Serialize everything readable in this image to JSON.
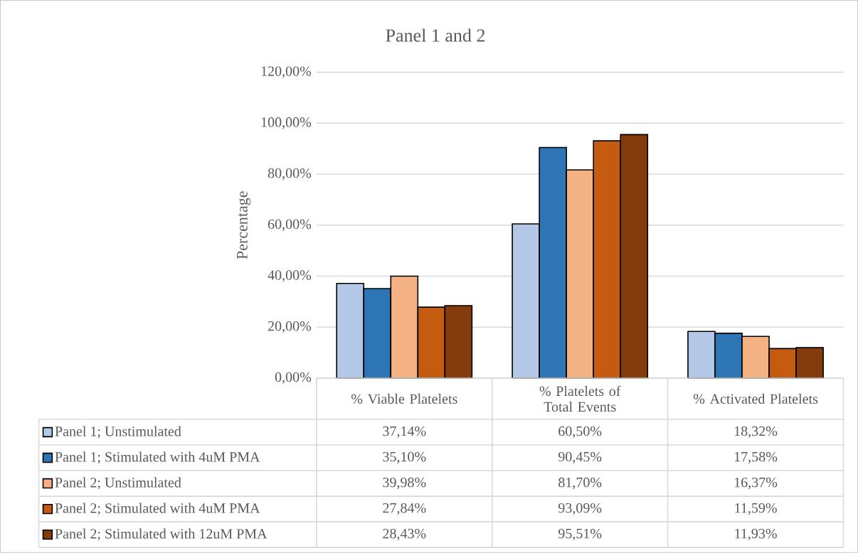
{
  "chart_data": {
    "type": "bar",
    "title": "Panel 1 and 2",
    "ylabel": "Percentage",
    "categories": [
      "% Viable Platelets",
      "% Platelets of Total Events",
      "% Activated Platelets"
    ],
    "series": [
      {
        "name": "Panel 1; Unstimulated",
        "color": "#b4c7e7",
        "values": [
          37.14,
          60.5,
          18.32
        ],
        "value_labels": [
          "37,14%",
          "60,50%",
          "18,32%"
        ]
      },
      {
        "name": "Panel 1; Stimulated with 4uM PMA",
        "color": "#2e75b6",
        "values": [
          35.1,
          90.45,
          17.58
        ],
        "value_labels": [
          "35,10%",
          "90,45%",
          "17,58%"
        ]
      },
      {
        "name": "Panel 2; Unstimulated",
        "color": "#f4b183",
        "values": [
          39.98,
          81.7,
          16.37
        ],
        "value_labels": [
          "39,98%",
          "81,70%",
          "16,37%"
        ]
      },
      {
        "name": "Panel 2; Stimulated with 4uM PMA",
        "color": "#c55a11",
        "values": [
          27.84,
          93.09,
          11.59
        ],
        "value_labels": [
          "27,84%",
          "93,09%",
          "11,59%"
        ]
      },
      {
        "name": "Panel 2; Stimulated with 12uM PMA",
        "color": "#843c0c",
        "values": [
          28.43,
          95.51,
          11.93
        ],
        "value_labels": [
          "28,43%",
          "95,51%",
          "11,93%"
        ]
      }
    ],
    "ylim": [
      0,
      120
    ],
    "yticks": [
      {
        "value": 0,
        "label": "0,00%"
      },
      {
        "value": 20,
        "label": "20,00%"
      },
      {
        "value": 40,
        "label": "40,00%"
      },
      {
        "value": 60,
        "label": "60,00%"
      },
      {
        "value": 80,
        "label": "80,00%"
      },
      {
        "value": 100,
        "label": "100,00%"
      },
      {
        "value": 120,
        "label": "120,00%"
      }
    ],
    "grid": "y",
    "legend": "bottom"
  }
}
